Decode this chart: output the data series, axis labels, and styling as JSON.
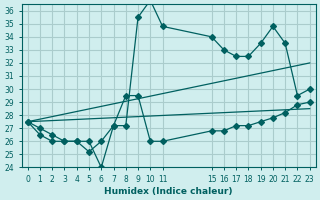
{
  "xlabel": "Humidex (Indice chaleur)",
  "background_color": "#d0eeee",
  "grid_color": "#aacccc",
  "line_color": "#006060",
  "x_tick_positions": [
    0,
    1,
    2,
    3,
    4,
    5,
    6,
    7,
    8,
    9,
    10,
    11,
    15,
    16,
    17,
    18,
    19,
    20,
    21,
    22,
    23
  ],
  "x_tick_labels": [
    "0",
    "1",
    "2",
    "3",
    "4",
    "5",
    "6",
    "7",
    "8",
    "9",
    "10",
    "11",
    "15",
    "16",
    "17",
    "18",
    "19",
    "20",
    "21",
    "22",
    "23"
  ],
  "ylim": [
    24,
    36.5
  ],
  "yticks": [
    24,
    25,
    26,
    27,
    28,
    29,
    30,
    31,
    32,
    33,
    34,
    35,
    36
  ],
  "line1_x": [
    0,
    1,
    2,
    3,
    4,
    5,
    6,
    7,
    8,
    9,
    10,
    11,
    15,
    16,
    17,
    18,
    19,
    20,
    21,
    22,
    23
  ],
  "line1_y": [
    27.5,
    27.0,
    26.5,
    26.0,
    26.0,
    26.0,
    24.0,
    27.2,
    27.2,
    35.5,
    36.8,
    34.8,
    34.0,
    33.0,
    32.5,
    32.5,
    33.5,
    34.8,
    33.5,
    29.5,
    30.0
  ],
  "line2_x": [
    0,
    1,
    2,
    3,
    4,
    5,
    6,
    7,
    8,
    9,
    10,
    11,
    15,
    16,
    17,
    18,
    19,
    20,
    21,
    22,
    23
  ],
  "line2_y": [
    27.5,
    26.5,
    26.0,
    26.0,
    26.0,
    25.2,
    26.0,
    27.2,
    29.5,
    29.5,
    26.0,
    26.0,
    26.8,
    26.8,
    27.2,
    27.2,
    27.5,
    27.8,
    28.2,
    28.8,
    29.0
  ],
  "line3_x": [
    0,
    23
  ],
  "line3_y": [
    27.5,
    32.0
  ],
  "line4_x": [
    0,
    23
  ],
  "line4_y": [
    27.5,
    28.5
  ],
  "marker": "D",
  "marker_size": 3
}
